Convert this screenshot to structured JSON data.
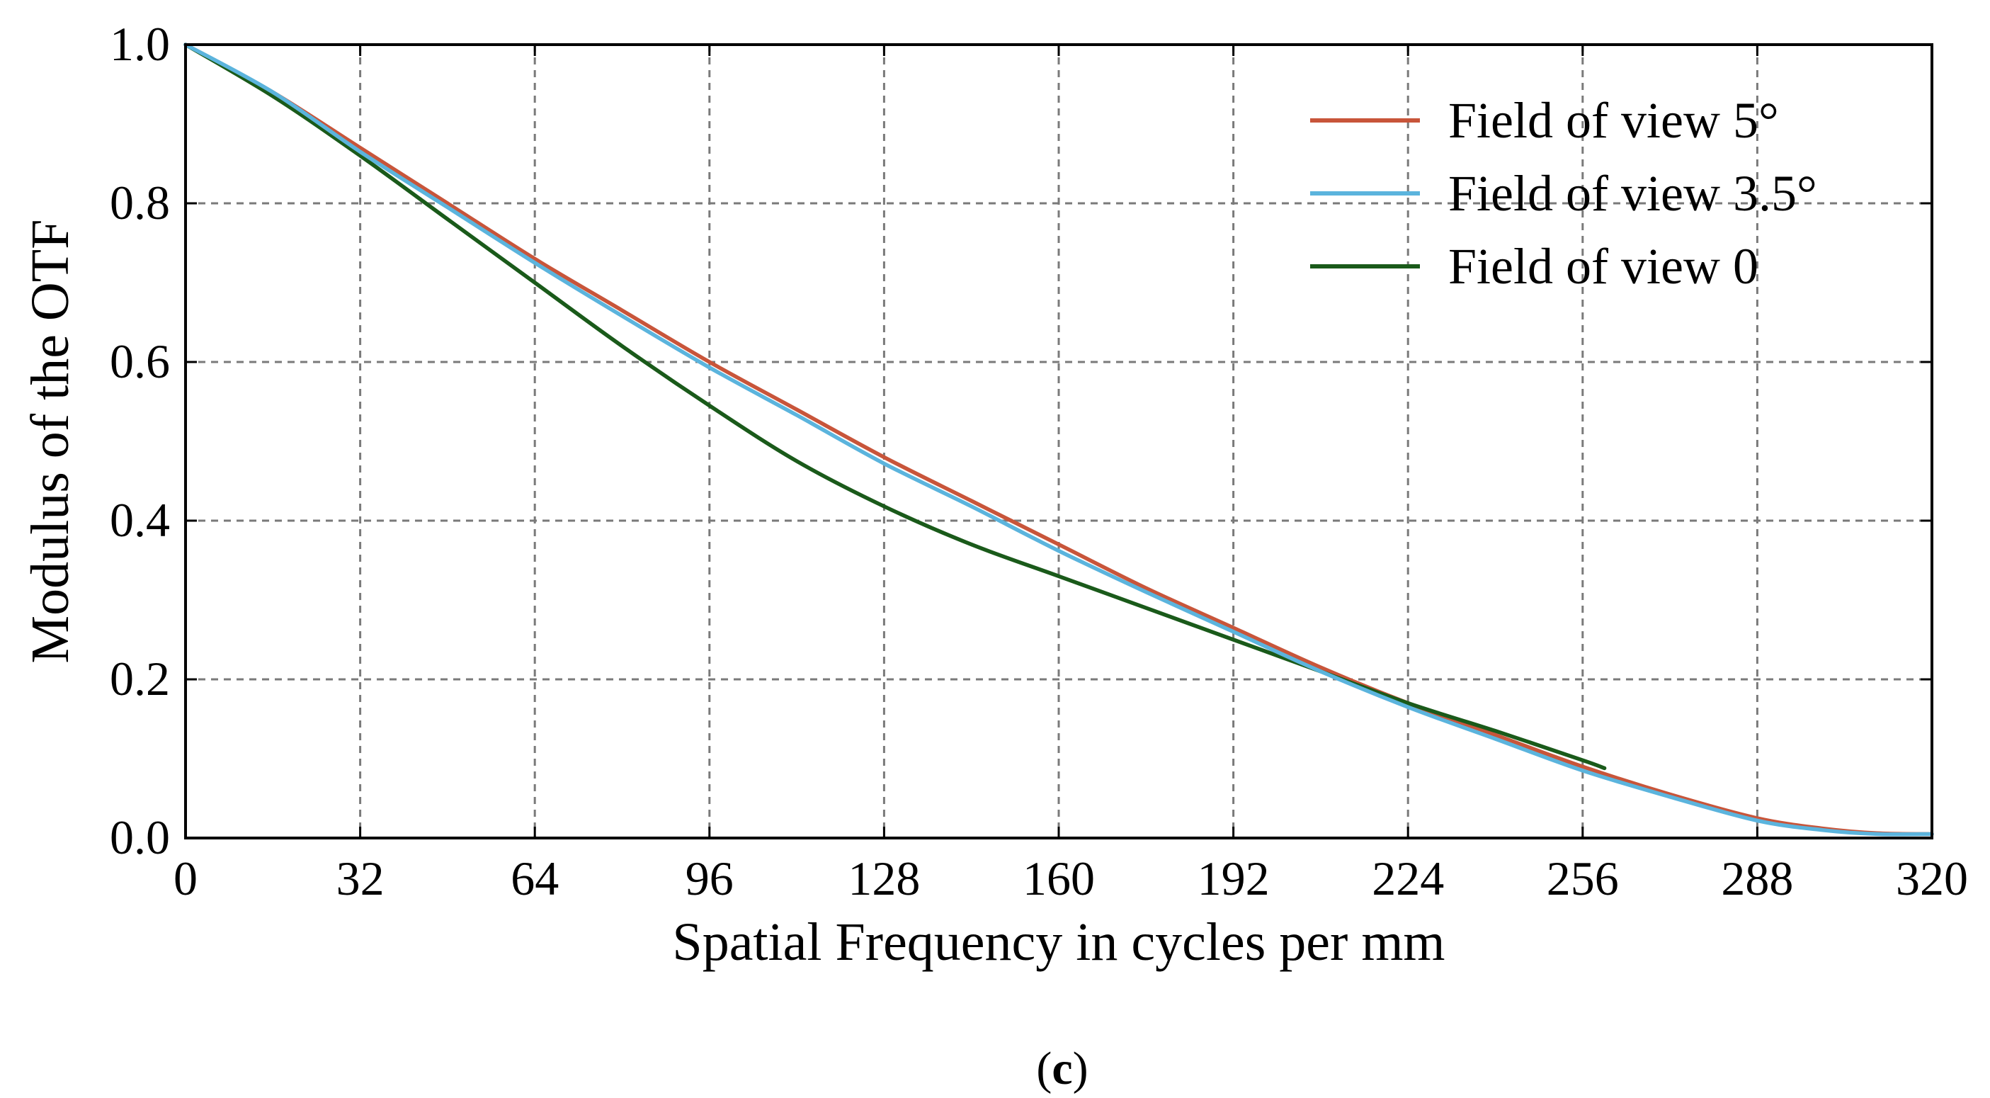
{
  "chart_data": {
    "type": "line",
    "title": "",
    "xlabel": "Spatial Frequency in cycles per mm",
    "ylabel": "Modulus of the OTF",
    "xlim": [
      0,
      320
    ],
    "ylim": [
      0.0,
      1.0
    ],
    "x_ticks": [
      0,
      32,
      64,
      96,
      128,
      160,
      192,
      224,
      256,
      288,
      320
    ],
    "x_tick_labels": [
      "0",
      "32",
      "64",
      "96",
      "128",
      "160",
      "192",
      "224",
      "256",
      "288",
      "320"
    ],
    "y_ticks": [
      0.0,
      0.2,
      0.4,
      0.6,
      0.8,
      1.0
    ],
    "y_tick_labels": [
      "0.0",
      "0.2",
      "0.4",
      "0.6",
      "0.8",
      "1.0"
    ],
    "grid": true,
    "legend_position": "top-right",
    "series": [
      {
        "name": "Field of view 5°",
        "color": "#c8553a",
        "x": [
          0,
          16,
          32,
          48,
          64,
          80,
          96,
          112,
          128,
          144,
          160,
          176,
          192,
          208,
          224,
          240,
          256,
          272,
          288,
          300,
          310,
          320
        ],
        "y": [
          1.0,
          0.94,
          0.87,
          0.8,
          0.73,
          0.665,
          0.6,
          0.54,
          0.48,
          0.425,
          0.37,
          0.315,
          0.265,
          0.215,
          0.17,
          0.13,
          0.09,
          0.055,
          0.025,
          0.012,
          0.006,
          0.005
        ]
      },
      {
        "name": "Field of view 3.5°",
        "color": "#5bb4dd",
        "x": [
          0,
          16,
          32,
          48,
          64,
          80,
          96,
          112,
          128,
          144,
          160,
          176,
          192,
          208,
          224,
          240,
          256,
          272,
          288,
          300,
          310,
          320
        ],
        "y": [
          1.0,
          0.94,
          0.865,
          0.795,
          0.725,
          0.658,
          0.593,
          0.533,
          0.472,
          0.418,
          0.362,
          0.31,
          0.26,
          0.21,
          0.165,
          0.125,
          0.085,
          0.052,
          0.022,
          0.01,
          0.005,
          0.005
        ]
      },
      {
        "name": "Field of view 0",
        "color": "#1a5a1a",
        "x": [
          0,
          16,
          32,
          48,
          64,
          80,
          96,
          112,
          128,
          144,
          160,
          176,
          192,
          208,
          224,
          240,
          256,
          260
        ],
        "y": [
          1.0,
          0.935,
          0.86,
          0.78,
          0.7,
          0.62,
          0.545,
          0.475,
          0.418,
          0.37,
          0.33,
          0.29,
          0.25,
          0.21,
          0.17,
          0.135,
          0.098,
          0.088
        ]
      }
    ]
  },
  "caption": {
    "open": "(",
    "letter": "c",
    "close": ")"
  }
}
